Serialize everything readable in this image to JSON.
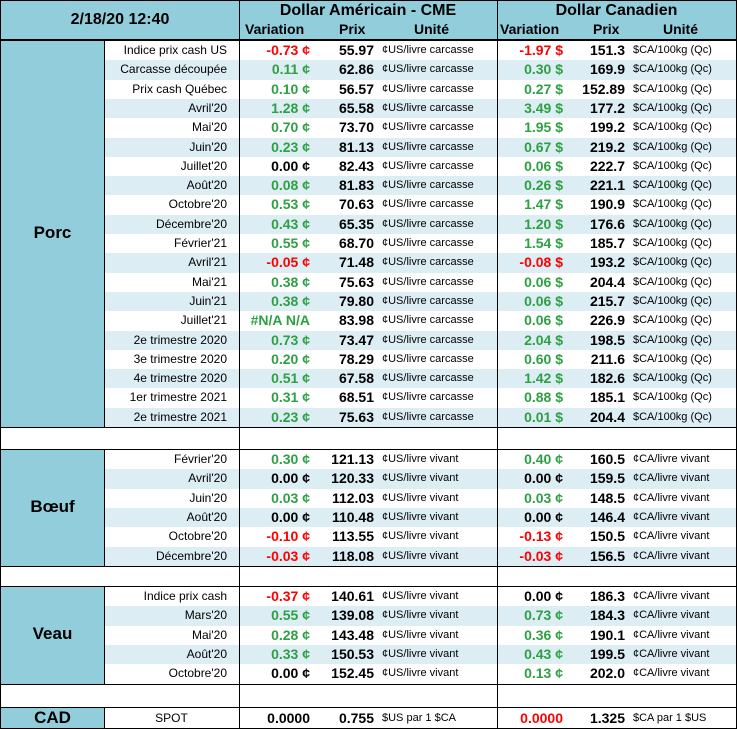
{
  "header": {
    "datetime": "2/18/20 12:40",
    "usd_title": "Dollar Américain - CME",
    "cad_title": "Dollar Canadien",
    "col_variation": "Variation",
    "col_prix": "Prix",
    "col_unite": "Unité"
  },
  "sections": [
    {
      "name": "Porc",
      "rows": [
        {
          "label": "Indice prix cash US",
          "usd_var": "-0.73 ¢",
          "usd_var_sign": "neg",
          "usd_prix": "55.97",
          "usd_unit": "¢US/livre carcasse",
          "cad_var": "-1.97 $",
          "cad_var_sign": "neg",
          "cad_prix": "151.3",
          "cad_unit": "$CA/100kg (Qc)"
        },
        {
          "label": "Carcasse découpée",
          "usd_var": "0.11 ¢",
          "usd_var_sign": "pos",
          "usd_prix": "62.86",
          "usd_unit": "¢US/livre carcasse",
          "cad_var": "0.30 $",
          "cad_var_sign": "pos",
          "cad_prix": "169.9",
          "cad_unit": "$CA/100kg (Qc)"
        },
        {
          "label": "Prix cash Québec",
          "usd_var": "0.10 ¢",
          "usd_var_sign": "pos",
          "usd_prix": "56.57",
          "usd_unit": "¢US/livre carcasse",
          "cad_var": "0.27 $",
          "cad_var_sign": "pos",
          "cad_prix": "152.89",
          "cad_unit": "$CA/100kg (Qc)"
        },
        {
          "label": "Avril'20",
          "usd_var": "1.28 ¢",
          "usd_var_sign": "pos",
          "usd_prix": "65.58",
          "usd_unit": "¢US/livre carcasse",
          "cad_var": "3.49 $",
          "cad_var_sign": "pos",
          "cad_prix": "177.2",
          "cad_unit": "$CA/100kg (Qc)"
        },
        {
          "label": "Mai'20",
          "usd_var": "0.70 ¢",
          "usd_var_sign": "pos",
          "usd_prix": "73.70",
          "usd_unit": "¢US/livre carcasse",
          "cad_var": "1.95 $",
          "cad_var_sign": "pos",
          "cad_prix": "199.2",
          "cad_unit": "$CA/100kg (Qc)"
        },
        {
          "label": "Juin'20",
          "usd_var": "0.23 ¢",
          "usd_var_sign": "pos",
          "usd_prix": "81.13",
          "usd_unit": "¢US/livre carcasse",
          "cad_var": "0.67 $",
          "cad_var_sign": "pos",
          "cad_prix": "219.2",
          "cad_unit": "$CA/100kg (Qc)"
        },
        {
          "label": "Juillet'20",
          "usd_var": "0.00 ¢",
          "usd_var_sign": "zero",
          "usd_prix": "82.43",
          "usd_unit": "¢US/livre carcasse",
          "cad_var": "0.06 $",
          "cad_var_sign": "pos",
          "cad_prix": "222.7",
          "cad_unit": "$CA/100kg (Qc)"
        },
        {
          "label": "Août'20",
          "usd_var": "0.08 ¢",
          "usd_var_sign": "pos",
          "usd_prix": "81.83",
          "usd_unit": "¢US/livre carcasse",
          "cad_var": "0.26 $",
          "cad_var_sign": "pos",
          "cad_prix": "221.1",
          "cad_unit": "$CA/100kg (Qc)"
        },
        {
          "label": "Octobre'20",
          "usd_var": "0.53 ¢",
          "usd_var_sign": "pos",
          "usd_prix": "70.63",
          "usd_unit": "¢US/livre carcasse",
          "cad_var": "1.47 $",
          "cad_var_sign": "pos",
          "cad_prix": "190.9",
          "cad_unit": "$CA/100kg (Qc)"
        },
        {
          "label": "Décembre'20",
          "usd_var": "0.43 ¢",
          "usd_var_sign": "pos",
          "usd_prix": "65.35",
          "usd_unit": "¢US/livre carcasse",
          "cad_var": "1.20 $",
          "cad_var_sign": "pos",
          "cad_prix": "176.6",
          "cad_unit": "$CA/100kg (Qc)"
        },
        {
          "label": "Février'21",
          "usd_var": "0.55 ¢",
          "usd_var_sign": "pos",
          "usd_prix": "68.70",
          "usd_unit": "¢US/livre carcasse",
          "cad_var": "1.54 $",
          "cad_var_sign": "pos",
          "cad_prix": "185.7",
          "cad_unit": "$CA/100kg (Qc)"
        },
        {
          "label": "Avril'21",
          "usd_var": "-0.05 ¢",
          "usd_var_sign": "neg",
          "usd_prix": "71.48",
          "usd_unit": "¢US/livre carcasse",
          "cad_var": "-0.08 $",
          "cad_var_sign": "neg",
          "cad_prix": "193.2",
          "cad_unit": "$CA/100kg (Qc)"
        },
        {
          "label": "Mai'21",
          "usd_var": "0.38 ¢",
          "usd_var_sign": "pos",
          "usd_prix": "75.63",
          "usd_unit": "¢US/livre carcasse",
          "cad_var": "0.06 $",
          "cad_var_sign": "pos",
          "cad_prix": "204.4",
          "cad_unit": "$CA/100kg (Qc)"
        },
        {
          "label": "Juin'21",
          "usd_var": "0.38 ¢",
          "usd_var_sign": "pos",
          "usd_prix": "79.80",
          "usd_unit": "¢US/livre carcasse",
          "cad_var": "0.06 $",
          "cad_var_sign": "pos",
          "cad_prix": "215.7",
          "cad_unit": "$CA/100kg (Qc)"
        },
        {
          "label": "Juillet'21",
          "usd_var": "#N/A N/A",
          "usd_var_sign": "pos",
          "usd_prix": "83.98",
          "usd_unit": "¢US/livre carcasse",
          "cad_var": "0.06 $",
          "cad_var_sign": "pos",
          "cad_prix": "226.9",
          "cad_unit": "$CA/100kg (Qc)"
        },
        {
          "label": "2e trimestre 2020",
          "usd_var": "0.73 ¢",
          "usd_var_sign": "pos",
          "usd_prix": "73.47",
          "usd_unit": "¢US/livre carcasse",
          "cad_var": "2.04 $",
          "cad_var_sign": "pos",
          "cad_prix": "198.5",
          "cad_unit": "$CA/100kg (Qc)"
        },
        {
          "label": "3e trimestre 2020",
          "usd_var": "0.20 ¢",
          "usd_var_sign": "pos",
          "usd_prix": "78.29",
          "usd_unit": "¢US/livre carcasse",
          "cad_var": "0.60 $",
          "cad_var_sign": "pos",
          "cad_prix": "211.6",
          "cad_unit": "$CA/100kg (Qc)"
        },
        {
          "label": "4e trimestre 2020",
          "usd_var": "0.51 ¢",
          "usd_var_sign": "pos",
          "usd_prix": "67.58",
          "usd_unit": "¢US/livre carcasse",
          "cad_var": "1.42 $",
          "cad_var_sign": "pos",
          "cad_prix": "182.6",
          "cad_unit": "$CA/100kg (Qc)"
        },
        {
          "label": "1er trimestre 2021",
          "usd_var": "0.31 ¢",
          "usd_var_sign": "pos",
          "usd_prix": "68.51",
          "usd_unit": "¢US/livre carcasse",
          "cad_var": "0.88 $",
          "cad_var_sign": "pos",
          "cad_prix": "185.1",
          "cad_unit": "$CA/100kg (Qc)"
        },
        {
          "label": "2e trimestre 2021",
          "usd_var": "0.23 ¢",
          "usd_var_sign": "pos",
          "usd_prix": "75.63",
          "usd_unit": "¢US/livre carcasse",
          "cad_var": "0.01 $",
          "cad_var_sign": "pos",
          "cad_prix": "204.4",
          "cad_unit": "$CA/100kg (Qc)"
        }
      ]
    },
    {
      "name": "Bœuf",
      "rows": [
        {
          "label": "Février'20",
          "usd_var": "0.30 ¢",
          "usd_var_sign": "pos",
          "usd_prix": "121.13",
          "usd_unit": "¢US/livre vivant",
          "cad_var": "0.40 ¢",
          "cad_var_sign": "pos",
          "cad_prix": "160.5",
          "cad_unit": "¢CA/livre vivant"
        },
        {
          "label": "Avril'20",
          "usd_var": "0.00 ¢",
          "usd_var_sign": "zero",
          "usd_prix": "120.33",
          "usd_unit": "¢US/livre vivant",
          "cad_var": "0.00 ¢",
          "cad_var_sign": "zero",
          "cad_prix": "159.5",
          "cad_unit": "¢CA/livre vivant"
        },
        {
          "label": "Juin'20",
          "usd_var": "0.03 ¢",
          "usd_var_sign": "pos",
          "usd_prix": "112.03",
          "usd_unit": "¢US/livre vivant",
          "cad_var": "0.03 ¢",
          "cad_var_sign": "pos",
          "cad_prix": "148.5",
          "cad_unit": "¢CA/livre vivant"
        },
        {
          "label": "Août'20",
          "usd_var": "0.00 ¢",
          "usd_var_sign": "zero",
          "usd_prix": "110.48",
          "usd_unit": "¢US/livre vivant",
          "cad_var": "0.00 ¢",
          "cad_var_sign": "zero",
          "cad_prix": "146.4",
          "cad_unit": "¢CA/livre vivant"
        },
        {
          "label": "Octobre'20",
          "usd_var": "-0.10 ¢",
          "usd_var_sign": "neg",
          "usd_prix": "113.55",
          "usd_unit": "¢US/livre vivant",
          "cad_var": "-0.13 ¢",
          "cad_var_sign": "neg",
          "cad_prix": "150.5",
          "cad_unit": "¢CA/livre vivant"
        },
        {
          "label": "Décembre'20",
          "usd_var": "-0.03 ¢",
          "usd_var_sign": "neg",
          "usd_prix": "118.08",
          "usd_unit": "¢US/livre vivant",
          "cad_var": "-0.03 ¢",
          "cad_var_sign": "neg",
          "cad_prix": "156.5",
          "cad_unit": "¢CA/livre vivant"
        }
      ]
    },
    {
      "name": "Veau",
      "rows": [
        {
          "label": "Indice prix cash",
          "usd_var": "-0.37 ¢",
          "usd_var_sign": "neg",
          "usd_prix": "140.61",
          "usd_unit": "¢US/livre vivant",
          "cad_var": "0.00 ¢",
          "cad_var_sign": "zero",
          "cad_prix": "186.3",
          "cad_unit": "¢CA/livre vivant"
        },
        {
          "label": "Mars'20",
          "usd_var": "0.55 ¢",
          "usd_var_sign": "pos",
          "usd_prix": "139.08",
          "usd_unit": "¢US/livre vivant",
          "cad_var": "0.73 ¢",
          "cad_var_sign": "pos",
          "cad_prix": "184.3",
          "cad_unit": "¢CA/livre vivant"
        },
        {
          "label": "Mai'20",
          "usd_var": "0.28 ¢",
          "usd_var_sign": "pos",
          "usd_prix": "143.48",
          "usd_unit": "¢US/livre vivant",
          "cad_var": "0.36 ¢",
          "cad_var_sign": "pos",
          "cad_prix": "190.1",
          "cad_unit": "¢CA/livre vivant"
        },
        {
          "label": "Août'20",
          "usd_var": "0.33 ¢",
          "usd_var_sign": "pos",
          "usd_prix": "150.53",
          "usd_unit": "¢US/livre vivant",
          "cad_var": "0.43 ¢",
          "cad_var_sign": "pos",
          "cad_prix": "199.5",
          "cad_unit": "¢CA/livre vivant"
        },
        {
          "label": "Octobre'20",
          "usd_var": "0.00 ¢",
          "usd_var_sign": "zero",
          "usd_prix": "152.45",
          "usd_unit": "¢US/livre vivant",
          "cad_var": "0.13 ¢",
          "cad_var_sign": "pos",
          "cad_prix": "202.0",
          "cad_unit": "¢CA/livre vivant"
        }
      ]
    }
  ],
  "cad": {
    "name": "CAD",
    "label": "SPOT",
    "usd_var": "0.0000",
    "usd_var_sign": "zero",
    "usd_prix": "0.755",
    "usd_unit": "$US par 1 $CA",
    "cad_var": "0.0000",
    "cad_var_sign": "neg",
    "cad_prix": "1.325",
    "cad_unit": "$CA par 1 $US"
  },
  "colors": {
    "header_bg": "#92cddc",
    "row_alt_bg": "#dcedf4",
    "positive": "#2ea043",
    "negative": "#ff0000"
  }
}
